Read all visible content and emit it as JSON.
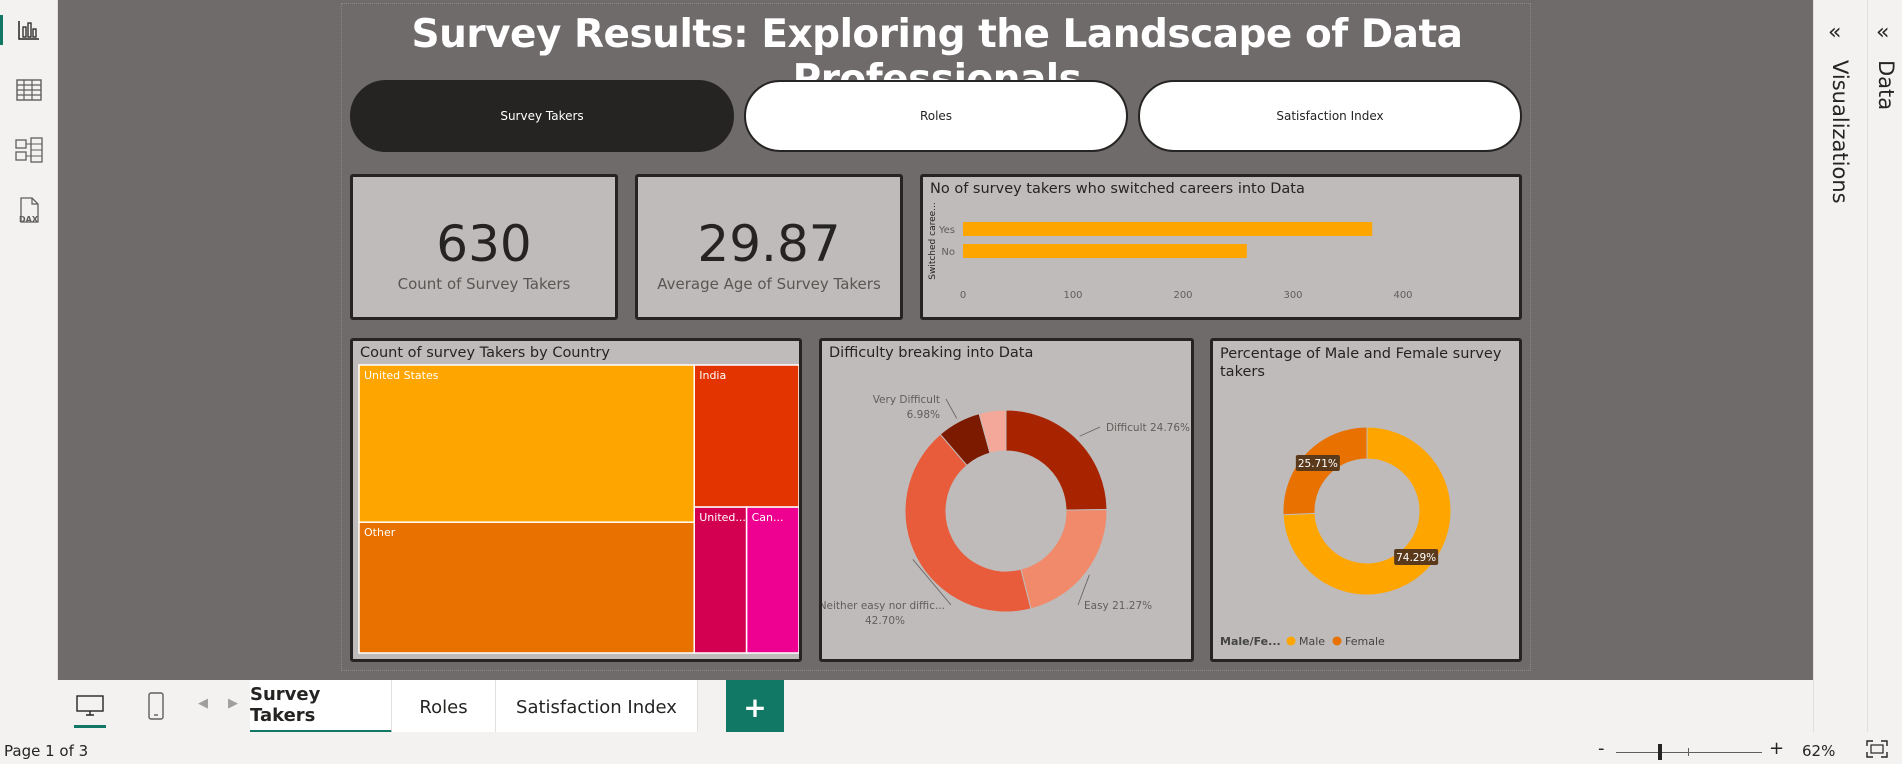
{
  "report": {
    "title": "Survey Results: Exploring the Landscape of Data Professionals",
    "nav_buttons": [
      "Survey Takers",
      "Roles",
      "Satisfaction Index"
    ]
  },
  "kpis": {
    "count": {
      "value": "630",
      "label": "Count of Survey Takers"
    },
    "avg_age": {
      "value": "29.87",
      "label": "Average Age of Survey Takers"
    }
  },
  "right_panes": {
    "visualizations": "Visualizations",
    "data": "Data"
  },
  "left_rail": {
    "icons": [
      "report-view-icon",
      "table-view-icon",
      "model-view-icon",
      "dax-query-icon"
    ]
  },
  "tabbar": {
    "tabs": [
      "Survey Takers",
      "Roles",
      "Satisfaction Index"
    ],
    "add_label": "+"
  },
  "statusbar": {
    "page_info": "Page 1 of 3",
    "zoom_minus": "-",
    "zoom_plus": "+",
    "zoom": "62%",
    "zoom_level": 0.3
  },
  "colors": {
    "accent": "#117865",
    "orange": "#FFA500",
    "canvas": "#6F6B6A",
    "card": "#BFBBBA"
  },
  "chart_data": [
    {
      "type": "bar",
      "orientation": "horizontal",
      "title": "No of survey takers who switched careers into Data",
      "ylabel": "Switched caree...",
      "categories": [
        "Yes",
        "No"
      ],
      "values": [
        372,
        258
      ],
      "xlim": [
        0,
        400
      ],
      "xticks": [
        "0",
        "100",
        "200",
        "300",
        "400"
      ],
      "color": "#FFA500"
    },
    {
      "type": "treemap",
      "title": "Count of survey Takers by Country",
      "items": [
        {
          "label": "United States",
          "value": 262,
          "color": "#FFA500"
        },
        {
          "label": "Other",
          "value": 218,
          "color": "#E87100"
        },
        {
          "label": "India",
          "value": 74,
          "color": "#E33400"
        },
        {
          "label": "United...",
          "value": 38,
          "color": "#D30051"
        },
        {
          "label": "Can...",
          "value": 38,
          "color": "#EE0091"
        }
      ]
    },
    {
      "type": "pie",
      "donut": true,
      "title": "Difficulty breaking into Data",
      "slices": [
        {
          "label": "Difficult",
          "percent": 24.76,
          "text": "Difficult 24.76%",
          "color": "#A82400"
        },
        {
          "label": "Easy",
          "percent": 21.27,
          "text": "Easy 21.27%",
          "color": "#F08A6A"
        },
        {
          "label": "Neither easy nor difficult",
          "percent": 42.7,
          "text": "Neither easy nor diffic... 42.70%",
          "color": "#E85B3B"
        },
        {
          "label": "Very Difficult",
          "percent": 6.98,
          "text": "Very Difficult 6.98%",
          "color": "#7C1A00"
        },
        {
          "label": "Other",
          "percent": 4.29,
          "text": "",
          "color": "#F4A89A"
        }
      ]
    },
    {
      "type": "pie",
      "donut": true,
      "title": "Percentage of Male and Female survey takers",
      "legend_title": "Male/Fe...",
      "legend": "bottom-left",
      "slices": [
        {
          "label": "Male",
          "percent": 74.29,
          "text": "74.29%",
          "color": "#FFA500"
        },
        {
          "label": "Female",
          "percent": 25.71,
          "text": "25.71%",
          "color": "#E87100"
        }
      ]
    }
  ]
}
